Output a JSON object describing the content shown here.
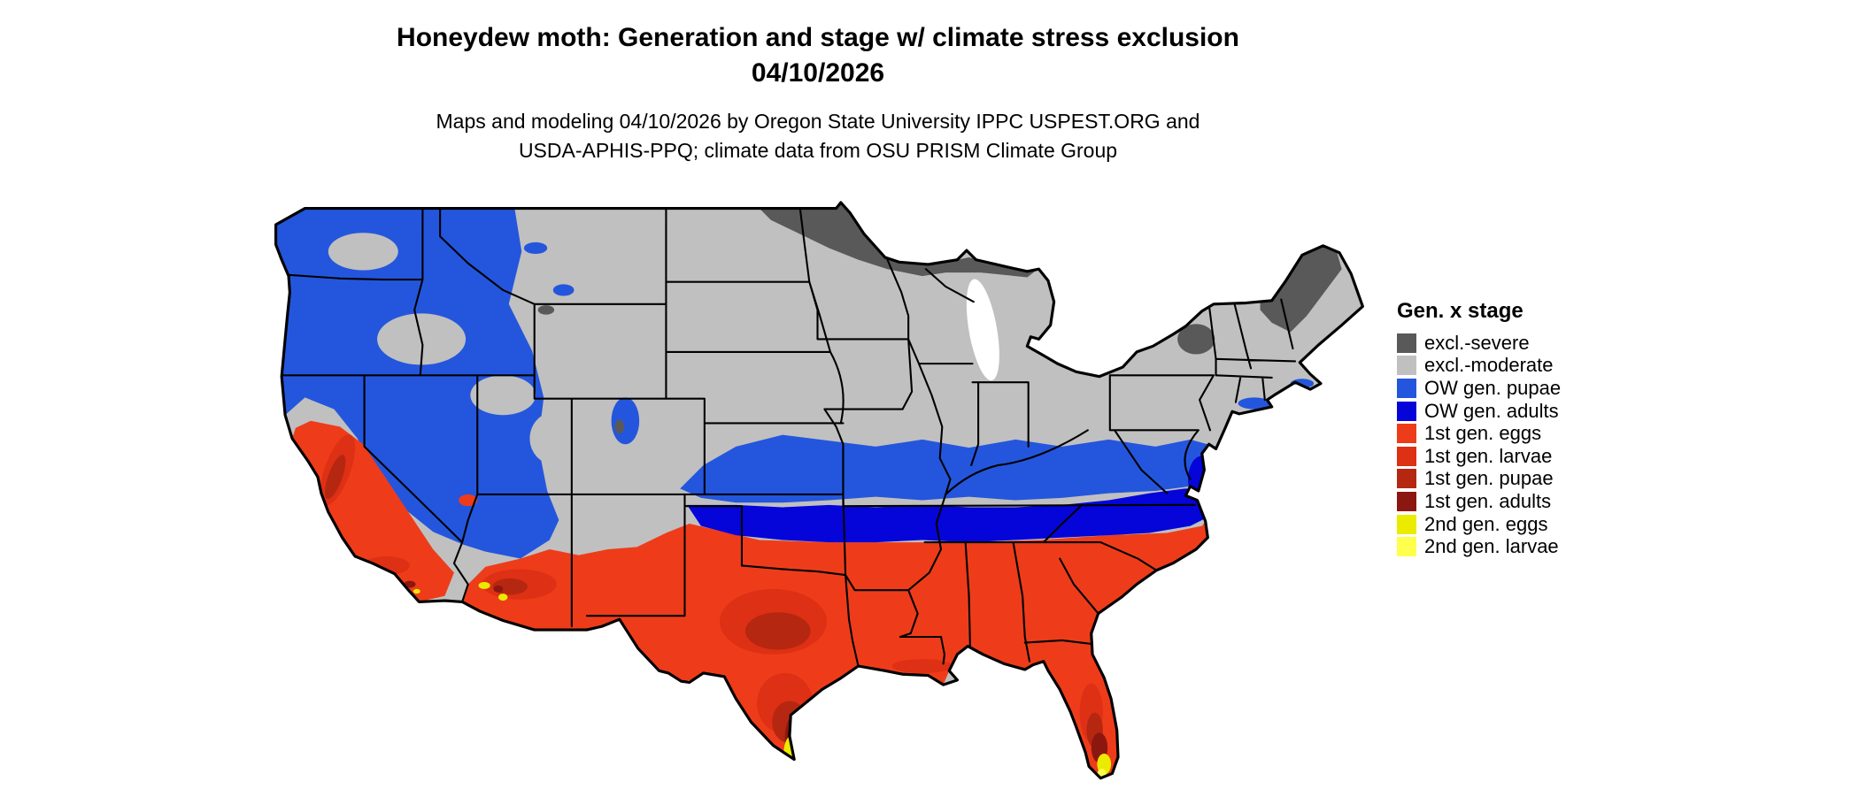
{
  "title": {
    "line1": "Honeydew moth: Generation and stage w/ climate stress exclusion",
    "line2": "04/10/2026"
  },
  "subtitle": {
    "line1": "Maps and modeling 04/10/2026 by Oregon State University IPPC USPEST.ORG and",
    "line2": "USDA-APHIS-PPQ; climate data from OSU PRISM Climate Group"
  },
  "legend": {
    "title": "Gen. x stage",
    "items": [
      {
        "label": "excl.-severe",
        "color": "#595959"
      },
      {
        "label": "excl.-moderate",
        "color": "#c0c0c0"
      },
      {
        "label": "OW gen. pupae",
        "color": "#2456dd"
      },
      {
        "label": "OW gen. adults",
        "color": "#0505d9"
      },
      {
        "label": "1st gen. eggs",
        "color": "#ee3c1a"
      },
      {
        "label": "1st gen. larvae",
        "color": "#dd3014"
      },
      {
        "label": "1st gen. pupae",
        "color": "#b52710"
      },
      {
        "label": "1st gen. adults",
        "color": "#8c1710"
      },
      {
        "label": "2nd gen. eggs",
        "color": "#ebeb00"
      },
      {
        "label": "2nd gen. larvae",
        "color": "#ffff4d"
      }
    ]
  },
  "map": {
    "region": "Continental United States",
    "model_date": "04/10/2026",
    "palette": {
      "excl_severe": "#595959",
      "excl_moderate": "#c0c0c0",
      "ow_pupae": "#2456dd",
      "ow_adults": "#0505d9",
      "g1_eggs": "#ee3c1a",
      "g1_larvae": "#dd3014",
      "g1_pupae": "#b52710",
      "g1_adults": "#8c1710",
      "g2_eggs": "#ebeb00",
      "g2_larvae": "#ffff4d"
    }
  }
}
